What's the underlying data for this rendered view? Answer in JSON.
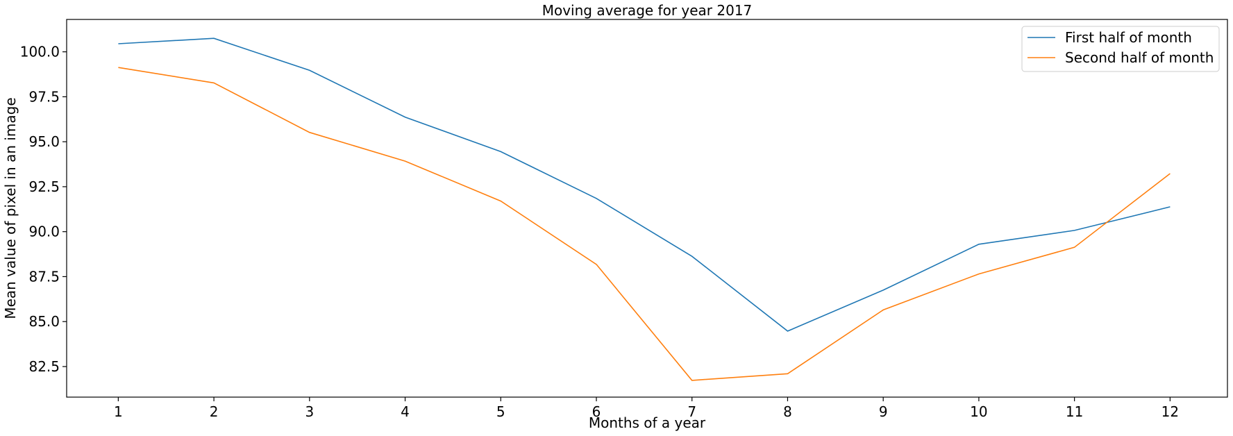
{
  "chart_data": {
    "type": "line",
    "title": "Moving average for year 2017",
    "xlabel": "Months of a year",
    "ylabel": "Mean value of pixel in an image",
    "x": [
      1,
      2,
      3,
      4,
      5,
      6,
      7,
      8,
      9,
      10,
      11,
      12
    ],
    "xticks": [
      "1",
      "2",
      "3",
      "4",
      "5",
      "6",
      "7",
      "8",
      "9",
      "10",
      "11",
      "12"
    ],
    "yticks": [
      "82.5",
      "85.0",
      "87.5",
      "90.0",
      "92.5",
      "95.0",
      "97.5",
      "100.0"
    ],
    "ylim": [
      80.8,
      101.8
    ],
    "xlim": [
      0.46,
      12.6
    ],
    "grid": false,
    "legend_position": "top-right",
    "series": [
      {
        "name": "First half of month",
        "color": "#1f77b4",
        "values": [
          100.45,
          100.75,
          98.97,
          96.37,
          94.45,
          91.85,
          88.63,
          84.47,
          86.75,
          89.3,
          90.07,
          91.38
        ]
      },
      {
        "name": "Second half of month",
        "color": "#ff7f0e",
        "values": [
          99.13,
          98.27,
          95.52,
          93.92,
          91.7,
          88.18,
          81.73,
          82.1,
          85.65,
          87.65,
          89.13,
          93.23
        ]
      }
    ]
  }
}
